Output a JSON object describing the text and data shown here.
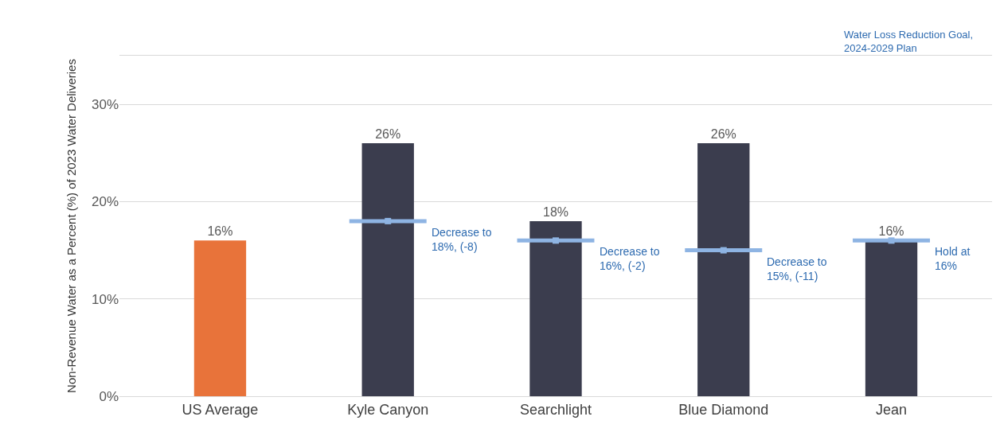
{
  "chart_data": {
    "type": "bar",
    "ylabel": "Non-Revenue Water as a Percent (%) of 2023 Water Deliveries",
    "categories": [
      "US Average",
      "Kyle Canyon",
      "Searchlight",
      "Blue Diamond",
      "Jean"
    ],
    "series": [
      {
        "colors": [
          "#e8733a",
          "#3b3d4e",
          "#3b3d4e",
          "#3b3d4e",
          "#3b3d4e"
        ],
        "values": [
          16,
          26,
          18,
          26,
          16
        ],
        "value_labels": [
          "16%",
          "26%",
          "18%",
          "26%",
          "16%"
        ]
      },
      {
        "type": "scatter",
        "color": "#8eb4e3",
        "values": [
          null,
          18,
          16,
          15,
          16
        ]
      }
    ],
    "ylim": [
      0,
      35
    ],
    "yticks": [
      {
        "value": 0,
        "label": "0%"
      },
      {
        "value": 10,
        "label": "10%"
      },
      {
        "value": 20,
        "label": "20%"
      },
      {
        "value": 30,
        "label": "30%"
      }
    ],
    "grid": "y",
    "annotations": [
      "Decrease to\n18%, (-8)",
      "Decrease to\n16%, (-2)",
      "Decrease to\n15%, (-11)",
      "Hold at\n16%",
      "Water Loss Reduction Goal,\n2024-2029 Plan"
    ]
  }
}
